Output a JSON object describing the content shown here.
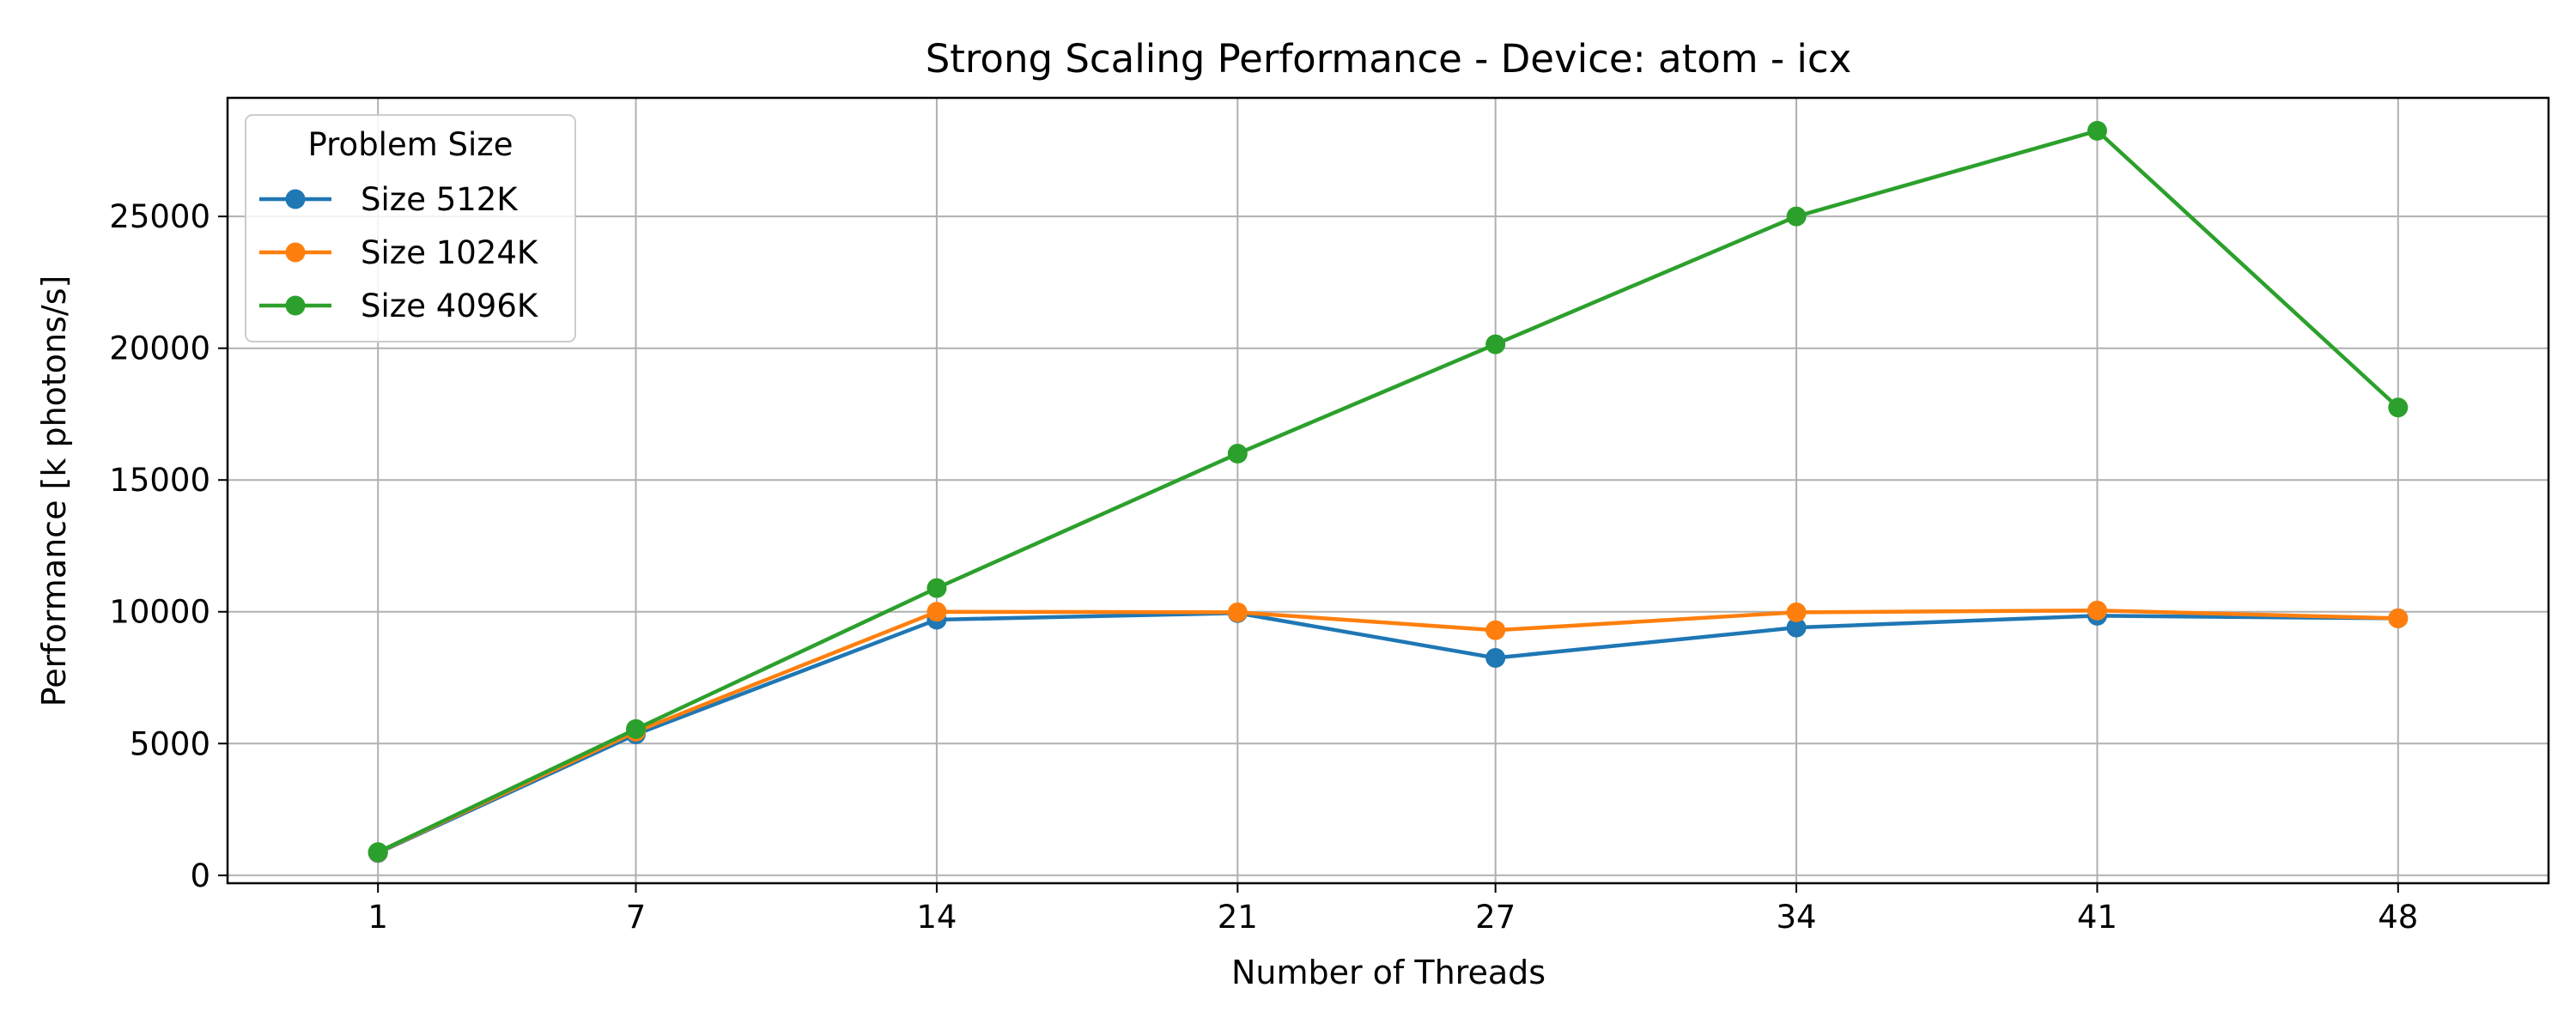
{
  "chart_data": {
    "type": "line",
    "title": "Strong Scaling Performance - Device: atom - icx",
    "xlabel": "Number of Threads",
    "ylabel": "Performance [k photons/s]",
    "x": [
      1,
      7,
      14,
      21,
      27,
      34,
      41,
      48
    ],
    "x_tick_labels": [
      "1",
      "7",
      "14",
      "21",
      "27",
      "34",
      "41",
      "48"
    ],
    "y_ticks": [
      0,
      5000,
      10000,
      15000,
      20000,
      25000
    ],
    "y_tick_labels": [
      "0",
      "5000",
      "10000",
      "15000",
      "20000",
      "25000"
    ],
    "xlim": [
      -2.5,
      51.5
    ],
    "ylim": [
      -300,
      29500
    ],
    "grid": true,
    "legend": {
      "title": "Problem Size",
      "placement": "top-left"
    },
    "series": [
      {
        "name": "Size 512K",
        "color": "#1f77b4",
        "values": [
          850,
          5350,
          9700,
          9950,
          8250,
          9400,
          9850,
          9750
        ]
      },
      {
        "name": "Size 1024K",
        "color": "#ff7f0e",
        "values": [
          870,
          5450,
          10000,
          9980,
          9300,
          9980,
          10050,
          9750
        ]
      },
      {
        "name": "Size 4096K",
        "color": "#2ca02c",
        "values": [
          880,
          5550,
          10900,
          16000,
          20150,
          25000,
          28250,
          17750
        ]
      }
    ]
  }
}
